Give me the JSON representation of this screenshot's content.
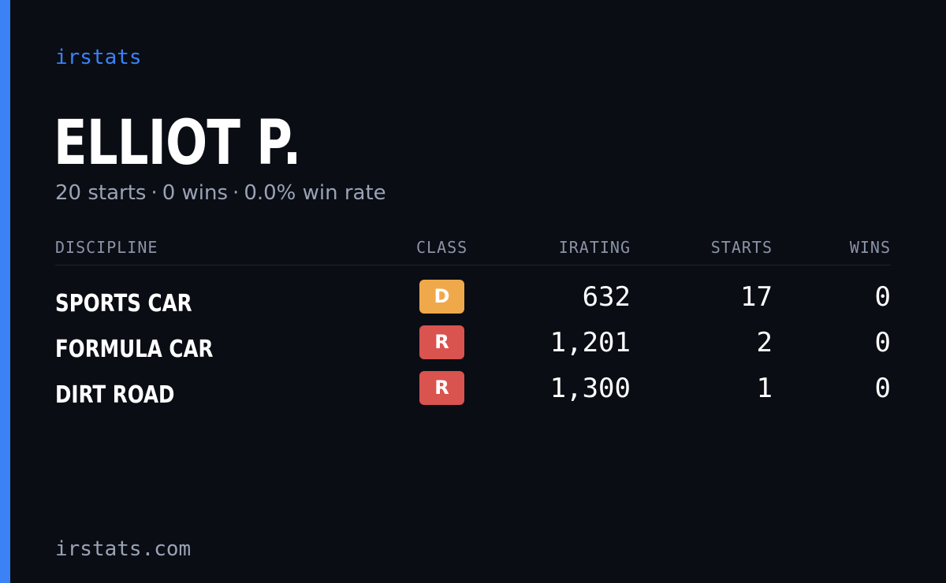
{
  "brand": "irstats",
  "player": {
    "name": "ELLIOT P.",
    "starts_summary": "20 starts",
    "wins_summary": "0 wins",
    "win_rate_summary": "0.0% win rate",
    "separator": "·"
  },
  "table": {
    "headers": {
      "discipline": "DISCIPLINE",
      "class": "CLASS",
      "irating": "IRATING",
      "starts": "STARTS",
      "wins": "WINS"
    },
    "rows": [
      {
        "discipline": "SPORTS CAR",
        "class": "D",
        "class_color": "#f0a94a",
        "irating": "632",
        "starts": "17",
        "wins": "0"
      },
      {
        "discipline": "FORMULA CAR",
        "class": "R",
        "class_color": "#d9534f",
        "irating": "1,201",
        "starts": "2",
        "wins": "0"
      },
      {
        "discipline": "DIRT ROAD",
        "class": "R",
        "class_color": "#d9534f",
        "irating": "1,300",
        "starts": "1",
        "wins": "0"
      }
    ]
  },
  "footer": "irstats.com",
  "colors": {
    "accent": "#3b82f6",
    "background": "#0a0d14",
    "muted_text": "#9aa3b5"
  }
}
